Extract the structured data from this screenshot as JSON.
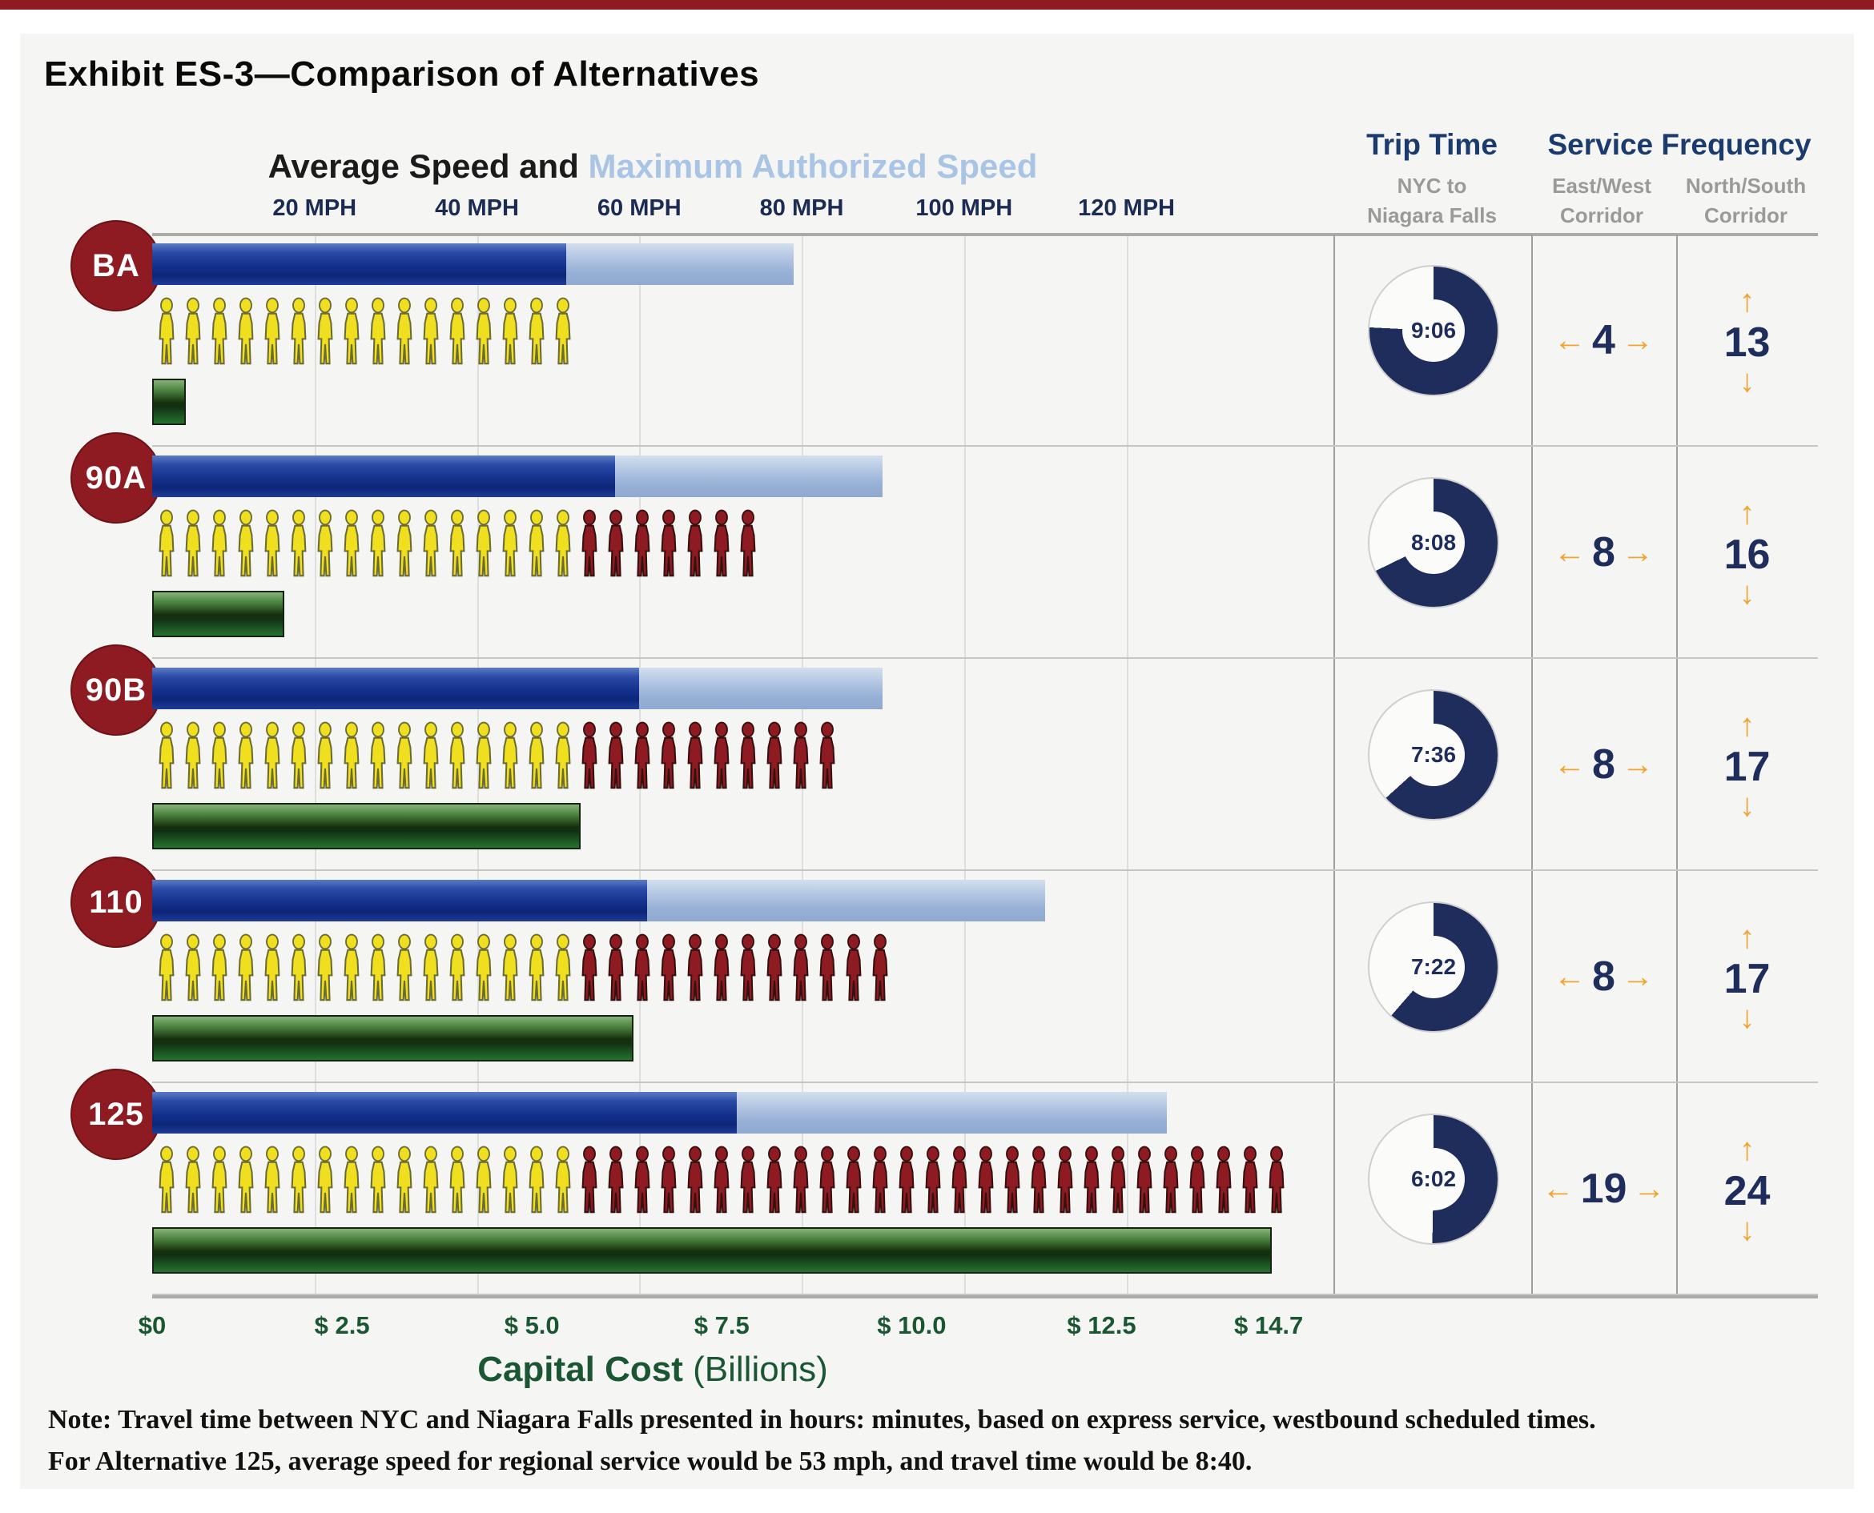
{
  "exhibit_title": "Exhibit ES-3—Comparison of Alternatives",
  "chart_header": {
    "average_speed": "Average Speed and ",
    "max_speed": "Maximum Authorized Speed"
  },
  "columns": {
    "trip_time": "Trip Time",
    "trip_sub": "NYC to\nNiagara Falls",
    "service_frequency": "Service Frequency",
    "east_west_sub": "East/West\nCorridor",
    "north_south_sub": "North/South\nCorridor"
  },
  "glyphs": {
    "left_arrow": "←",
    "right_arrow": "→",
    "up_arrow": "↑",
    "down_arrow": "↓"
  },
  "cost_label": {
    "bold": "Capital Cost",
    "normal": " (Billions)"
  },
  "note": {
    "label": "Note:",
    "line1": "  Travel time between NYC and Niagara Falls presented in hours: minutes, based on express service, westbound scheduled times.",
    "line2": "For Alternative 125, average speed for regional service would be 53 mph, and travel time would be 8:40."
  },
  "colors": {
    "maroon": "#8e1b21",
    "navy": "#1e2d5c",
    "orange": "#f2a331",
    "yellow_rider": "#f0df1f",
    "yellow_rider_stroke": "#6b6b35",
    "red_rider": "#8e1b21",
    "red_rider_stroke": "#35100f",
    "donut_empty": "#fbfbfa"
  },
  "chart_data": {
    "type": "bar",
    "title": "Average Speed and Maximum Authorized Speed",
    "x_axis": {
      "unit": "MPH",
      "ticks": [
        20,
        40,
        60,
        80,
        100,
        120
      ],
      "tick_labels": [
        "20 MPH",
        "40 MPH",
        "60 MPH",
        "80 MPH",
        "100 MPH",
        "120 MPH"
      ],
      "plot_max": 145
    },
    "cost_axis": {
      "unit": "Billions USD",
      "ticks": [
        0,
        2.5,
        5.0,
        7.5,
        10.0,
        12.5,
        14.7
      ],
      "tick_labels": [
        "$0",
        "$ 2.5",
        "$ 5.0",
        "$ 7.5",
        "$ 10.0",
        "$ 12.5",
        "$ 14.7"
      ],
      "plot_max": 15.5
    },
    "trip_time_dial_full_scale_hours": 12,
    "legend": {
      "dark_bar": "Average Speed",
      "light_bar": "Maximum Authorized Speed",
      "green_bar": "Capital Cost (Billions)",
      "yellow_icons": "existing riders",
      "red_icons": "added riders"
    },
    "rows": [
      {
        "alternative": "BA",
        "avg_speed_mph": 51,
        "max_authorized_speed_mph": 79,
        "riders_yellow": 16,
        "riders_red": 0,
        "capital_cost_billions": 0.4,
        "trip_time": "9:06",
        "east_west_frequency": 4,
        "north_south_frequency": 13
      },
      {
        "alternative": "90A",
        "avg_speed_mph": 57,
        "max_authorized_speed_mph": 90,
        "riders_yellow": 16,
        "riders_red": 7,
        "capital_cost_billions": 1.7,
        "trip_time": "8:08",
        "east_west_frequency": 8,
        "north_south_frequency": 16
      },
      {
        "alternative": "90B",
        "avg_speed_mph": 60,
        "max_authorized_speed_mph": 90,
        "riders_yellow": 16,
        "riders_red": 10,
        "capital_cost_billions": 5.6,
        "trip_time": "7:36",
        "east_west_frequency": 8,
        "north_south_frequency": 17
      },
      {
        "alternative": "110",
        "avg_speed_mph": 61,
        "max_authorized_speed_mph": 110,
        "riders_yellow": 16,
        "riders_red": 12,
        "capital_cost_billions": 6.3,
        "trip_time": "7:22",
        "east_west_frequency": 8,
        "north_south_frequency": 17
      },
      {
        "alternative": "125",
        "avg_speed_mph": 72,
        "max_authorized_speed_mph": 125,
        "riders_yellow": 16,
        "riders_red": 27,
        "capital_cost_billions": 14.7,
        "trip_time": "6:02",
        "east_west_frequency": 19,
        "north_south_frequency": 24
      }
    ]
  }
}
